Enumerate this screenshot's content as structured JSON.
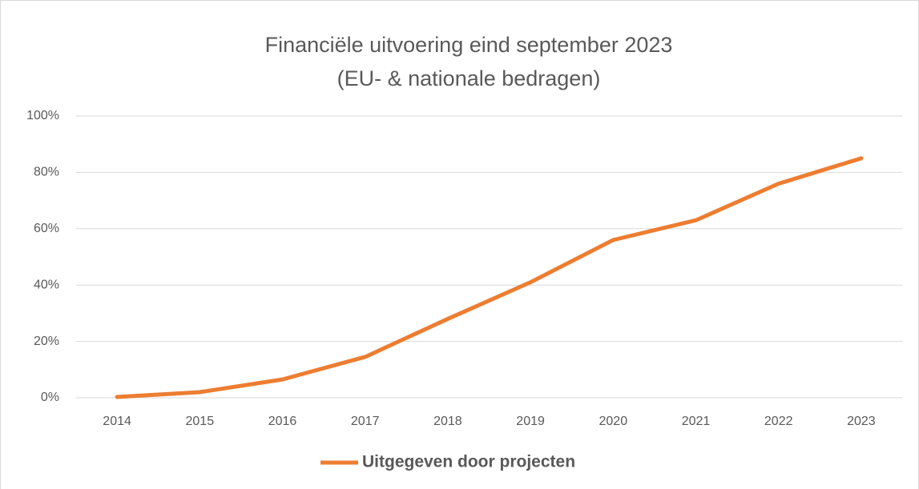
{
  "chart_data": {
    "type": "line",
    "title": "Financiële uitvoering eind september 2023",
    "subtitle": "(EU- & nationale bedragen)",
    "categories": [
      "2014",
      "2015",
      "2016",
      "2017",
      "2018",
      "2019",
      "2020",
      "2021",
      "2022",
      "2023"
    ],
    "series": [
      {
        "name": "Uitgegeven door projecten",
        "color": "#ed7d31",
        "values": [
          0.3,
          2,
          6.5,
          14.5,
          28,
          41,
          56,
          63,
          76,
          85
        ]
      }
    ],
    "ylim": [
      0,
      100
    ],
    "yticks": [
      {
        "value": 0,
        "label": "0%"
      },
      {
        "value": 20,
        "label": "20%"
      },
      {
        "value": 40,
        "label": "40%"
      },
      {
        "value": 60,
        "label": "60%"
      },
      {
        "value": 80,
        "label": "80%"
      },
      {
        "value": 100,
        "label": "100%"
      }
    ],
    "grid": true,
    "legend": "bottom"
  }
}
